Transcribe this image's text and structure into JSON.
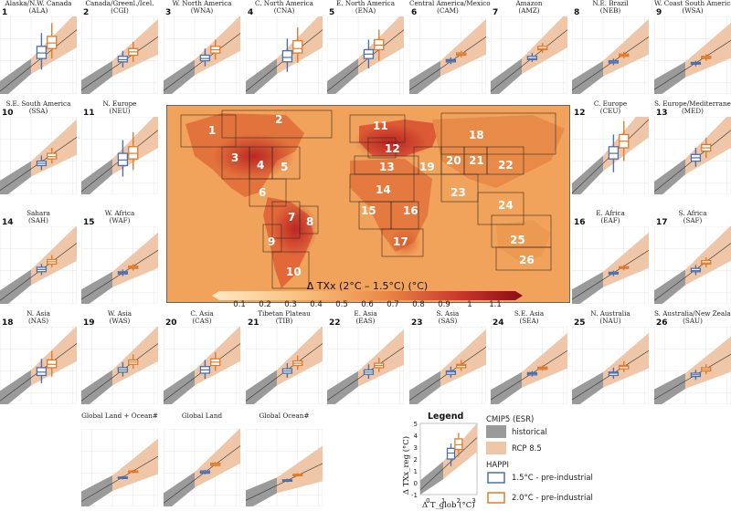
{
  "colors": {
    "historical": "#9a9a9a",
    "rcp85": "#efc7a8",
    "happi15": "#4a6fb0",
    "happi20": "#e07a2a",
    "map_low": "#fde7c0",
    "map_high": "#a6101a"
  },
  "map": {
    "title": "Δ TXx (2°C – 1.5°C) (°C)",
    "colorbar_ticks": [
      "0.1",
      "0.2",
      "0.3",
      "0.4",
      "0.5",
      "0.6",
      "0.7",
      "0.8",
      "0.9",
      "1",
      "1.1"
    ],
    "region_labels": [
      "1",
      "2",
      "3",
      "4",
      "5",
      "6",
      "7",
      "8",
      "9",
      "10",
      "11",
      "12",
      "13",
      "14",
      "15",
      "16",
      "17",
      "18",
      "19",
      "20",
      "21",
      "22",
      "23",
      "24",
      "25",
      "26"
    ]
  },
  "panels": [
    {
      "n": "1",
      "name": "Alaska/N.W. Canada",
      "abbr": "(ALA)"
    },
    {
      "n": "2",
      "name": "Canada/Greenl./Icel.",
      "abbr": "(CGI)"
    },
    {
      "n": "3",
      "name": "W. North America",
      "abbr": "(WNA)"
    },
    {
      "n": "4",
      "name": "C. North America",
      "abbr": "(CNA)"
    },
    {
      "n": "5",
      "name": "E. North America",
      "abbr": "(ENA)"
    },
    {
      "n": "6",
      "name": "Central America/Mexico",
      "abbr": "(CAM)"
    },
    {
      "n": "7",
      "name": "Amazon",
      "abbr": "(AMZ)"
    },
    {
      "n": "8",
      "name": "N.E. Brazil",
      "abbr": "(NEB)"
    },
    {
      "n": "9",
      "name": "W. Coast South America",
      "abbr": "(WSA)"
    },
    {
      "n": "10",
      "name": "S.E. South America",
      "abbr": "(SSA)"
    },
    {
      "n": "11",
      "name": "N. Europe",
      "abbr": "(NEU)"
    },
    {
      "n": "12",
      "name": "C. Europe",
      "abbr": "(CEU)"
    },
    {
      "n": "13",
      "name": "S. Europe/Mediterranean",
      "abbr": "(MED)"
    },
    {
      "n": "14",
      "name": "Sahara",
      "abbr": "(SAH)"
    },
    {
      "n": "15",
      "name": "W. Africa",
      "abbr": "(WAF)"
    },
    {
      "n": "16",
      "name": "E. Africa",
      "abbr": "(EAF)"
    },
    {
      "n": "17",
      "name": "S. Africa",
      "abbr": "(SAF)"
    },
    {
      "n": "18",
      "name": "N. Asia",
      "abbr": "(NAS)"
    },
    {
      "n": "19",
      "name": "W. Asia",
      "abbr": "(WAS)"
    },
    {
      "n": "20",
      "name": "C. Asia",
      "abbr": "(CAS)"
    },
    {
      "n": "21",
      "name": "Tibetan Plateau",
      "abbr": "(TIB)"
    },
    {
      "n": "22",
      "name": "E. Asia",
      "abbr": "(EAS)"
    },
    {
      "n": "23",
      "name": "S. Asia",
      "abbr": "(SAS)"
    },
    {
      "n": "24",
      "name": "S.E. Asia",
      "abbr": "(SEA)"
    },
    {
      "n": "25",
      "name": "N. Australia",
      "abbr": "(NAU)"
    },
    {
      "n": "26",
      "name": "S. Australia/New Zealand",
      "abbr": "(SAU)"
    },
    {
      "n": "",
      "name": "Global Land + Ocean#",
      "abbr": ""
    },
    {
      "n": "",
      "name": "Global Land",
      "abbr": ""
    },
    {
      "n": "",
      "name": "Global Ocean#",
      "abbr": ""
    }
  ],
  "legend": {
    "title": "Legend",
    "cmip5_title": "CMIP5 (ESR)",
    "historical_label": "historical",
    "rcp_label": "RCP 8.5",
    "happi_title": "HAPPI",
    "happi15_label": "1.5°C - pre-industrial",
    "happi20_label": "2.0°C - pre-industrial",
    "ylabel": "Δ TXx_reg (°C)",
    "xlabel": "Δ T_glob (°C)",
    "yticks": [
      "-1",
      "0",
      "1",
      "2",
      "3",
      "4",
      "5"
    ],
    "xticks": [
      "0",
      "1",
      "2",
      "3"
    ]
  },
  "chart_data": {
    "type": "line",
    "x_axis": "Δ T_glob (°C)",
    "y_axis": "Δ TXx_reg (°C)",
    "legend_xlim": [
      -0.5,
      3.2
    ],
    "legend_ylim": [
      -1,
      5
    ],
    "box_x": {
      "happi15": 1.5,
      "happi20": 2.0
    },
    "series_names": [
      "historical",
      "RCP 8.5",
      "1.5°C - pre-industrial",
      "2.0°C - pre-industrial"
    ],
    "regions": [
      {
        "n": "1",
        "scale": 1.5,
        "b15": [
          1.2,
          2.2,
          2.7,
          3.3,
          4.5
        ],
        "b20": [
          2.2,
          3.1,
          3.6,
          4.2,
          5.4
        ]
      },
      {
        "n": "2",
        "scale": 1.3,
        "b15": [
          1.4,
          1.9,
          2.1,
          2.4,
          2.9
        ],
        "b20": [
          1.9,
          2.5,
          2.8,
          3.1,
          3.7
        ]
      },
      {
        "n": "3",
        "scale": 1.4,
        "b15": [
          1.5,
          2.0,
          2.2,
          2.5,
          3.1
        ],
        "b20": [
          2.1,
          2.7,
          3.0,
          3.3,
          3.9
        ]
      },
      {
        "n": "4",
        "scale": 1.5,
        "b15": [
          1.0,
          1.9,
          2.3,
          2.9,
          4.0
        ],
        "b20": [
          1.8,
          2.7,
          3.1,
          3.8,
          5.0
        ]
      },
      {
        "n": "5",
        "scale": 1.5,
        "b15": [
          1.3,
          2.2,
          2.6,
          3.0,
          3.9
        ],
        "b20": [
          2.0,
          3.0,
          3.4,
          3.9,
          4.8
        ]
      },
      {
        "n": "6",
        "scale": 1.3,
        "b15": [
          1.7,
          1.9,
          2.0,
          2.1,
          2.3
        ],
        "b20": [
          2.3,
          2.5,
          2.6,
          2.7,
          2.9
        ]
      },
      {
        "n": "7",
        "scale": 1.5,
        "b15": [
          1.9,
          2.1,
          2.2,
          2.4,
          2.7
        ],
        "b20": [
          2.7,
          3.0,
          3.1,
          3.3,
          3.6
        ]
      },
      {
        "n": "8",
        "scale": 1.3,
        "b15": [
          1.6,
          1.8,
          1.9,
          2.0,
          2.2
        ],
        "b20": [
          2.2,
          2.4,
          2.5,
          2.6,
          2.8
        ]
      },
      {
        "n": "9",
        "scale": 1.2,
        "b15": [
          1.5,
          1.7,
          1.75,
          1.85,
          2.0
        ],
        "b20": [
          2.0,
          2.2,
          2.3,
          2.4,
          2.6
        ]
      },
      {
        "n": "10",
        "scale": 1.3,
        "b15": [
          1.2,
          1.6,
          1.8,
          2.0,
          2.5
        ],
        "b20": [
          1.8,
          2.2,
          2.4,
          2.7,
          3.2
        ]
      },
      {
        "n": "11",
        "scale": 1.5,
        "b15": [
          0.6,
          1.6,
          2.1,
          2.7,
          3.9
        ],
        "b20": [
          1.2,
          2.2,
          2.7,
          3.3,
          4.6
        ]
      },
      {
        "n": "12",
        "scale": 1.8,
        "b15": [
          1.0,
          2.2,
          2.7,
          3.3,
          4.4
        ],
        "b20": [
          2.0,
          3.2,
          3.8,
          4.4,
          5.6
        ]
      },
      {
        "n": "13",
        "scale": 1.5,
        "b15": [
          1.5,
          2.0,
          2.3,
          2.6,
          3.2
        ],
        "b20": [
          2.3,
          2.9,
          3.2,
          3.5,
          4.1
        ]
      },
      {
        "n": "14",
        "scale": 1.4,
        "b15": [
          1.6,
          1.9,
          2.1,
          2.3,
          2.6
        ],
        "b20": [
          2.3,
          2.6,
          2.8,
          3.0,
          3.4
        ]
      },
      {
        "n": "15",
        "scale": 1.2,
        "b15": [
          1.5,
          1.7,
          1.8,
          1.9,
          2.1
        ],
        "b20": [
          2.0,
          2.2,
          2.3,
          2.4,
          2.6
        ]
      },
      {
        "n": "16",
        "scale": 1.2,
        "b15": [
          1.5,
          1.7,
          1.8,
          1.85,
          2.0
        ],
        "b20": [
          2.0,
          2.2,
          2.25,
          2.35,
          2.5
        ]
      },
      {
        "n": "17",
        "scale": 1.4,
        "b15": [
          1.6,
          1.9,
          2.0,
          2.2,
          2.5
        ],
        "b20": [
          2.3,
          2.6,
          2.7,
          2.9,
          3.2
        ]
      },
      {
        "n": "18",
        "scale": 1.4,
        "b15": [
          0.9,
          1.6,
          1.9,
          2.3,
          3.1
        ],
        "b20": [
          1.5,
          2.3,
          2.6,
          3.0,
          3.8
        ]
      },
      {
        "n": "19",
        "scale": 1.4,
        "b15": [
          1.5,
          1.9,
          2.1,
          2.3,
          2.8
        ],
        "b20": [
          2.2,
          2.6,
          2.8,
          3.0,
          3.5
        ]
      },
      {
        "n": "20",
        "scale": 1.4,
        "b15": [
          1.3,
          1.8,
          2.1,
          2.4,
          3.0
        ],
        "b20": [
          2.0,
          2.5,
          2.8,
          3.1,
          3.7
        ]
      },
      {
        "n": "21",
        "scale": 1.4,
        "b15": [
          1.4,
          1.8,
          2.0,
          2.2,
          2.7
        ],
        "b20": [
          2.1,
          2.5,
          2.7,
          2.9,
          3.4
        ]
      },
      {
        "n": "22",
        "scale": 1.3,
        "b15": [
          1.3,
          1.7,
          1.9,
          2.1,
          2.6
        ],
        "b20": [
          1.9,
          2.3,
          2.5,
          2.7,
          3.2
        ]
      },
      {
        "n": "23",
        "scale": 1.3,
        "b15": [
          1.4,
          1.7,
          1.9,
          2.0,
          2.4
        ],
        "b20": [
          2.0,
          2.3,
          2.5,
          2.6,
          3.0
        ]
      },
      {
        "n": "24",
        "scale": 1.2,
        "b15": [
          1.5,
          1.65,
          1.75,
          1.85,
          2.0
        ],
        "b20": [
          2.0,
          2.15,
          2.25,
          2.35,
          2.5
        ]
      },
      {
        "n": "25",
        "scale": 1.2,
        "b15": [
          1.3,
          1.6,
          1.8,
          1.9,
          2.3
        ],
        "b20": [
          1.9,
          2.2,
          2.4,
          2.5,
          2.9
        ]
      },
      {
        "n": "26",
        "scale": 1.1,
        "b15": [
          1.2,
          1.5,
          1.65,
          1.8,
          2.1
        ],
        "b20": [
          1.7,
          2.0,
          2.15,
          2.3,
          2.6
        ]
      },
      {
        "n": "GLO",
        "scale": 1.1,
        "b15": [
          1.45,
          1.55,
          1.6,
          1.65,
          1.75
        ],
        "b20": [
          2.0,
          2.1,
          2.15,
          2.2,
          2.3
        ]
      },
      {
        "n": "GLA",
        "scale": 1.4,
        "b15": [
          1.9,
          2.0,
          2.1,
          2.2,
          2.3
        ],
        "b20": [
          2.6,
          2.7,
          2.8,
          2.9,
          3.0
        ]
      },
      {
        "n": "GOC",
        "scale": 0.9,
        "b15": [
          1.2,
          1.3,
          1.35,
          1.4,
          1.5
        ],
        "b20": [
          1.7,
          1.8,
          1.85,
          1.9,
          2.0
        ]
      }
    ]
  }
}
